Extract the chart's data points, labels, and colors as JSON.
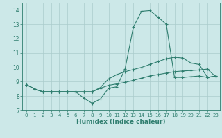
{
  "xlabel": "Humidex (Indice chaleur)",
  "background_color": "#cce8e8",
  "grid_color": "#aacccc",
  "line_color": "#2e7d6e",
  "xlim": [
    -0.5,
    23.5
  ],
  "ylim": [
    7,
    14.5
  ],
  "yticks": [
    7,
    8,
    9,
    10,
    11,
    12,
    13,
    14
  ],
  "xticks": [
    0,
    1,
    2,
    3,
    4,
    5,
    6,
    7,
    8,
    9,
    10,
    11,
    12,
    13,
    14,
    15,
    16,
    17,
    18,
    19,
    20,
    21,
    22,
    23
  ],
  "line1_x": [
    0,
    1,
    2,
    3,
    4,
    5,
    6,
    7,
    8,
    9,
    10,
    11,
    12,
    13,
    14,
    15,
    16,
    17,
    18,
    19,
    20,
    21,
    22,
    23
  ],
  "line1_y": [
    8.8,
    8.5,
    8.3,
    8.3,
    8.3,
    8.3,
    8.3,
    7.85,
    7.5,
    7.8,
    8.55,
    8.65,
    9.9,
    12.8,
    13.9,
    13.95,
    13.5,
    13.0,
    9.3,
    9.3,
    9.35,
    9.4,
    9.3,
    9.4
  ],
  "line2_x": [
    0,
    1,
    2,
    3,
    4,
    5,
    6,
    7,
    8,
    9,
    10,
    11,
    12,
    13,
    14,
    15,
    16,
    17,
    18,
    19,
    20,
    21,
    22,
    23
  ],
  "line2_y": [
    8.8,
    8.5,
    8.3,
    8.3,
    8.3,
    8.3,
    8.3,
    8.3,
    8.3,
    8.6,
    9.2,
    9.5,
    9.7,
    9.85,
    10.0,
    10.2,
    10.4,
    10.6,
    10.7,
    10.65,
    10.3,
    10.2,
    9.3,
    9.4
  ],
  "line3_x": [
    0,
    1,
    2,
    3,
    4,
    5,
    6,
    7,
    8,
    9,
    10,
    11,
    12,
    13,
    14,
    15,
    16,
    17,
    18,
    19,
    20,
    21,
    22,
    23
  ],
  "line3_y": [
    8.8,
    8.5,
    8.3,
    8.3,
    8.3,
    8.3,
    8.3,
    8.3,
    8.3,
    8.55,
    8.75,
    8.85,
    8.95,
    9.1,
    9.25,
    9.4,
    9.5,
    9.6,
    9.7,
    9.75,
    9.78,
    9.82,
    9.88,
    9.35
  ]
}
